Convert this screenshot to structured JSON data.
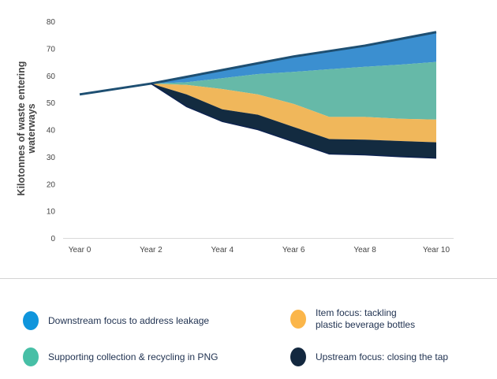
{
  "chart_data": {
    "type": "area",
    "ylabel": "Kilotonnes of waste entering waterways",
    "ylim": [
      0,
      80
    ],
    "yticks": [
      "0",
      "10",
      "20",
      "30",
      "40",
      "50",
      "60",
      "70",
      "80"
    ],
    "x": [
      0,
      1,
      2,
      3,
      4,
      5,
      6,
      7,
      8,
      9,
      10
    ],
    "xticks": [
      "Year 0",
      "Year 2",
      "Year 4",
      "Year 6",
      "Year 8",
      "Year 10"
    ],
    "total": [
      53,
      55,
      57,
      59.5,
      62,
      64.5,
      67,
      69,
      71,
      73.5,
      76
    ],
    "bands": [
      {
        "name": "Downstream focus to address leakage",
        "color": "#3b8fd0",
        "upper": [
          null,
          null,
          57,
          59.5,
          62,
          64.5,
          67,
          69,
          71,
          73.5,
          76
        ],
        "lower": [
          null,
          null,
          57,
          57.5,
          59,
          60.5,
          61.3,
          62.3,
          63.2,
          64,
          65
        ]
      },
      {
        "name": "Supporting collection & recycling in PNG",
        "color": "#66b9a8",
        "upper": [
          null,
          null,
          57,
          57.5,
          59,
          60.5,
          61.3,
          62.3,
          63.2,
          64,
          65
        ],
        "lower": [
          null,
          null,
          57,
          56.5,
          55,
          53,
          49.5,
          44.7,
          44.7,
          44,
          43.7
        ]
      },
      {
        "name": "Item focus: tackling plastic beverage bottles",
        "color": "#f0b75b",
        "upper": [
          null,
          null,
          57,
          56.5,
          55,
          53,
          49.5,
          44.7,
          44.7,
          44,
          43.7
        ],
        "lower": [
          null,
          null,
          57,
          53,
          47.5,
          45.5,
          41,
          36.5,
          36.3,
          35.8,
          35.3
        ]
      },
      {
        "name": "Upstream focus: closing the tap",
        "color": "#132b40",
        "upper": [
          null,
          null,
          57,
          53,
          47.5,
          45.5,
          41,
          36.5,
          36.3,
          35.8,
          35.3
        ],
        "lower": [
          null,
          null,
          57,
          48.5,
          43,
          40,
          35.5,
          31,
          30.7,
          30,
          29.5
        ]
      }
    ],
    "line_color": "#1e4f72",
    "grid": false
  },
  "legend": [
    {
      "line1": "Downstream focus to address leakage",
      "line2": "",
      "color": "#0f95dc"
    },
    {
      "line1": "Item focus: tackling",
      "line2": "plastic beverage bottles",
      "color": "#fbb64a"
    },
    {
      "line1": "Supporting collection & recycling in PNG",
      "line2": "",
      "color": "#47bfa6"
    },
    {
      "line1": "Upstream focus: closing the tap",
      "line2": "",
      "color": "#13283f"
    }
  ]
}
